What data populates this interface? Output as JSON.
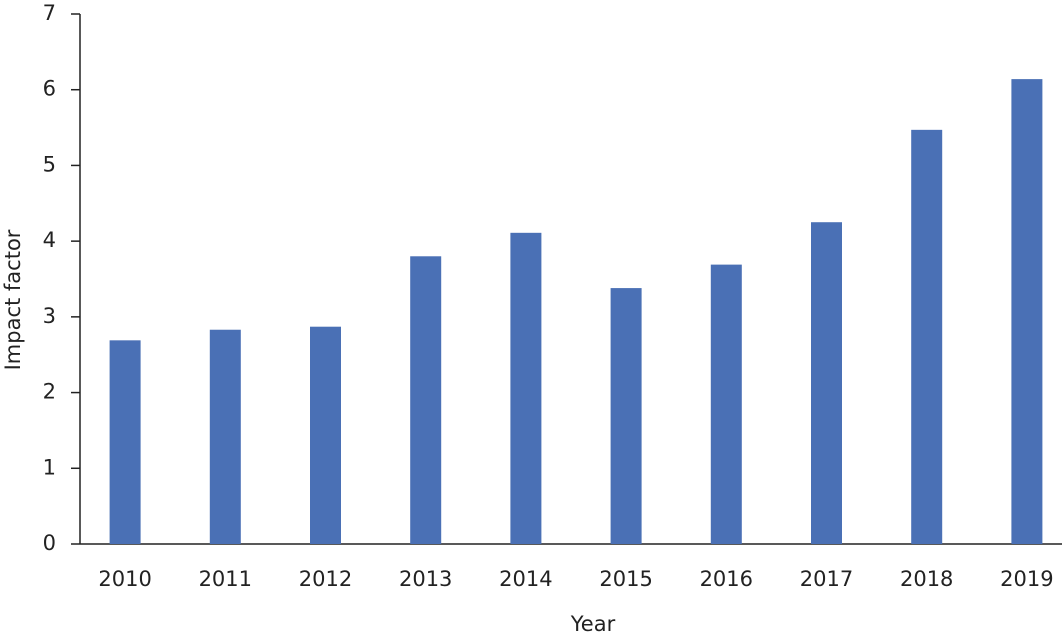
{
  "chart_data": {
    "type": "bar",
    "x_label": "Year",
    "y_label": "Impact factor",
    "categories": [
      "2010",
      "2011",
      "2012",
      "2013",
      "2014",
      "2015",
      "2016",
      "2017",
      "2018",
      "2019"
    ],
    "values": [
      2.69,
      2.83,
      2.87,
      3.8,
      4.11,
      3.38,
      3.69,
      4.25,
      5.47,
      6.14
    ],
    "color": "#4a70b5",
    "ylim": [
      0,
      7
    ],
    "yticks": [
      0,
      1,
      2,
      3,
      4,
      5,
      6,
      7
    ],
    "grid": false
  }
}
